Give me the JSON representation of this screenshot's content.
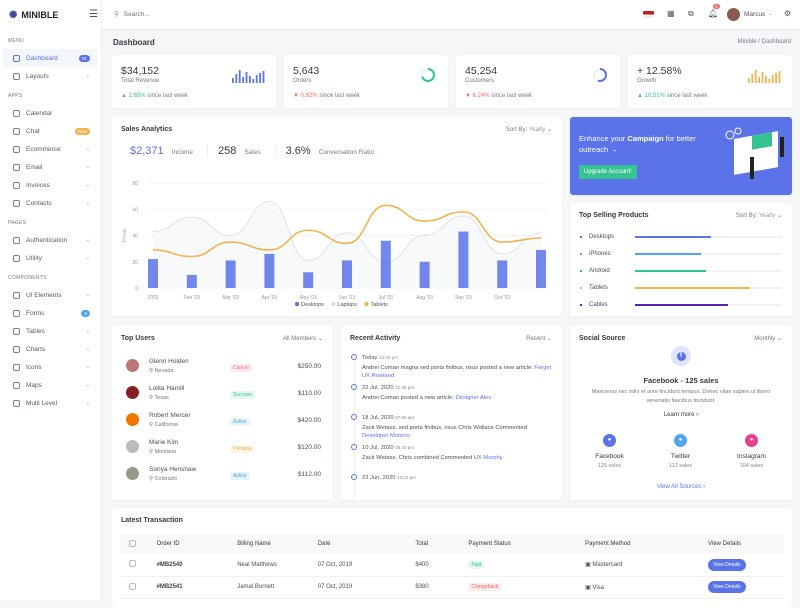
{
  "app": {
    "name": "MINIBLE"
  },
  "header": {
    "search_placeholder": "Search...",
    "user": "Marcus",
    "notifications": "3"
  },
  "page": {
    "title": "Dashboard",
    "breadcrumb": [
      "Minible",
      "Dashboard"
    ]
  },
  "sidebar": {
    "sections": [
      {
        "title": "MENU",
        "items": [
          {
            "label": "Dashboard",
            "badge": "01",
            "badge_color": "#5b73e8",
            "active": true
          },
          {
            "label": "Layouts",
            "chevron": true
          }
        ]
      },
      {
        "title": "APPS",
        "items": [
          {
            "label": "Calendar"
          },
          {
            "label": "Chat",
            "badge": "New",
            "badge_color": "#f1b44c"
          },
          {
            "label": "Ecommerce",
            "chevron": true
          },
          {
            "label": "Email",
            "chevron": true
          },
          {
            "label": "Invoices",
            "chevron": true
          },
          {
            "label": "Contacts",
            "chevron": true
          }
        ]
      },
      {
        "title": "PAGES",
        "items": [
          {
            "label": "Authentication",
            "chevron": true
          },
          {
            "label": "Utility",
            "chevron": true
          }
        ]
      },
      {
        "title": "COMPONENTS",
        "items": [
          {
            "label": "UI Elements",
            "chevron": true
          },
          {
            "label": "Forms",
            "badge": "6",
            "badge_color": "#50a5f1"
          },
          {
            "label": "Tables",
            "chevron": true
          },
          {
            "label": "Charts",
            "chevron": true
          },
          {
            "label": "Icons",
            "chevron": true
          },
          {
            "label": "Maps",
            "chevron": true
          },
          {
            "label": "Multi Level",
            "chevron": true
          }
        ]
      }
    ]
  },
  "stats": [
    {
      "value": "$34,152",
      "label": "Total Revenue",
      "change": "2.65%",
      "dir": "up",
      "suffix": "since last week",
      "widget": "bars",
      "color": "#5b73e8"
    },
    {
      "value": "5,643",
      "label": "Orders",
      "change": "0.82%",
      "dir": "dn",
      "suffix": "since last week",
      "widget": "ring",
      "color": "#34c38f",
      "progress": 70
    },
    {
      "value": "45,254",
      "label": "Customers",
      "change": "6.24%",
      "dir": "dn",
      "suffix": "since last week",
      "widget": "ring",
      "color": "#5b73e8",
      "progress": 55
    },
    {
      "value": "+ 12.58%",
      "label": "Growth",
      "change": "10.51%",
      "dir": "up",
      "suffix": "since last week",
      "widget": "bars",
      "color": "#f1b44c"
    }
  ],
  "sales": {
    "title": "Sales Analytics",
    "sort_label": "Sort By:",
    "sort_value": "Yearly",
    "income": "$2,371",
    "income_label": "Income",
    "sales": "258",
    "sales_label": "Sales",
    "ratio": "3.6%",
    "ratio_label": "Conversation Ratio"
  },
  "chart_data": {
    "type": "bar",
    "ylabel": "Points",
    "ylim": [
      0,
      80
    ],
    "yticks": [
      0,
      20,
      40,
      60,
      80
    ],
    "categories": [
      "2003",
      "Feb '03",
      "Mar '03",
      "Apr '03",
      "May '03",
      "Jun '03",
      "Jul '03",
      "Aug '03",
      "Sep '03",
      "Oct '03",
      ""
    ],
    "series": [
      {
        "name": "Desktops",
        "type": "bar",
        "color": "#5b73e8",
        "values": [
          22,
          10,
          21,
          26,
          12,
          21,
          36,
          20,
          43,
          21,
          29
        ]
      },
      {
        "name": "Laptops",
        "type": "area",
        "color": "#dfe2e6",
        "values": [
          43,
          54,
          40,
          66,
          21,
          42,
          20,
          40,
          55,
          26,
          42
        ]
      },
      {
        "name": "Tablets",
        "type": "line",
        "color": "#f1b44c",
        "values": [
          29,
          24,
          35,
          29,
          44,
          34,
          63,
          51,
          58,
          35,
          38
        ]
      }
    ],
    "legend": "bottom",
    "grid": true
  },
  "campaign": {
    "text_pre": "Enhance your ",
    "text_bold": "Campaign",
    "text_post": " for better outreach →",
    "button": "Upgrade Account!"
  },
  "top_products": {
    "title": "Top Selling Products",
    "sort_label": "Sort By:",
    "sort_value": "Yearly",
    "items": [
      {
        "name": "Desktops",
        "percent": 52,
        "color": "#5b73e8"
      },
      {
        "name": "iPhones",
        "percent": 45,
        "color": "#50a5f1"
      },
      {
        "name": "Android",
        "percent": 48,
        "color": "#34c38f"
      },
      {
        "name": "Tablets",
        "percent": 78,
        "color": "#f1b44c"
      },
      {
        "name": "Cables",
        "percent": 63,
        "color": "#5b21b6"
      }
    ]
  },
  "top_users": {
    "title": "Top Users",
    "filter": "All Members",
    "items": [
      {
        "name": "Glenn Holden",
        "location": "Nevada",
        "status": "Cancel",
        "status_color": "#f46a6a",
        "amount": "$250.00"
      },
      {
        "name": "Lolita Hamill",
        "location": "Texas",
        "status": "Success",
        "status_color": "#34c38f",
        "amount": "$110.00"
      },
      {
        "name": "Robert Mercer",
        "location": "California",
        "status": "Active",
        "status_color": "#50a5f1",
        "amount": "$420.00"
      },
      {
        "name": "Marie Kim",
        "location": "Montana",
        "status": "Pending",
        "status_color": "#f1b44c",
        "amount": "$120.00"
      },
      {
        "name": "Sonya Henshaw",
        "location": "Colorado",
        "status": "Active",
        "status_color": "#50a5f1",
        "amount": "$112.00"
      }
    ]
  },
  "activity": {
    "title": "Recent Activity",
    "filter": "Recent",
    "items": [
      {
        "date": "Today",
        "time": "12:20 pm",
        "text": "Andrei Coman magna sed porta finibus, risus posted a new article:",
        "link": "Forget UX Rowland"
      },
      {
        "date": "22 Jul, 2020",
        "time": "12:36 pm",
        "text": "Andrei Coman posted a new article:",
        "link": "Designer Alex"
      },
      {
        "date": "18 Jul, 2020",
        "time": "07:56 am",
        "text": "Zack Wetass, sed porta finibus, risus Chris Wallace Commented",
        "link": "Developer Moreno"
      },
      {
        "date": "10 Jul, 2020",
        "time": "08:42 pm",
        "text": "Zack Wetass, Chris combined Commented",
        "link": "UX Murphy"
      },
      {
        "date": "23 Jun, 2020",
        "time": "12:22 pm",
        "text": "",
        "link": ""
      }
    ]
  },
  "social": {
    "title": "Social Source",
    "filter": "Monthly",
    "headline": "Facebook - 125 sales",
    "desc": "Maecenas nec odio et ante tincidunt tempus. Donec vitae sapien ut libero venenatis faucibus tincidunt.",
    "learn_more": "Learn more ›",
    "view_all": "View All Sources ›",
    "sources": [
      {
        "name": "Facebook",
        "sales": "125 sales",
        "color": "#5b73e8",
        "icon": "facebook-icon"
      },
      {
        "name": "Twitter",
        "sales": "112 sales",
        "color": "#50a5f1",
        "icon": "twitter-icon"
      },
      {
        "name": "Instagram",
        "sales": "104 sales",
        "color": "#e83e8c",
        "icon": "instagram-icon"
      }
    ]
  },
  "transactions": {
    "title": "Latest Transaction",
    "columns": [
      "Order ID",
      "Billing Name",
      "Date",
      "Total",
      "Payment Status",
      "Payment Method",
      "View Details"
    ],
    "rows": [
      {
        "id": "#MB2540",
        "name": "Neal Matthews",
        "date": "07 Oct, 2019",
        "total": "$400",
        "status": "Paid",
        "status_color": "#34c38f",
        "method": "Mastercard",
        "button": "View Details"
      },
      {
        "id": "#MB2541",
        "name": "Jamal Burnett",
        "date": "07 Oct, 2019",
        "total": "$380",
        "status": "Chargeback",
        "status_color": "#f46a6a",
        "method": "Visa",
        "button": "View Details"
      }
    ]
  }
}
